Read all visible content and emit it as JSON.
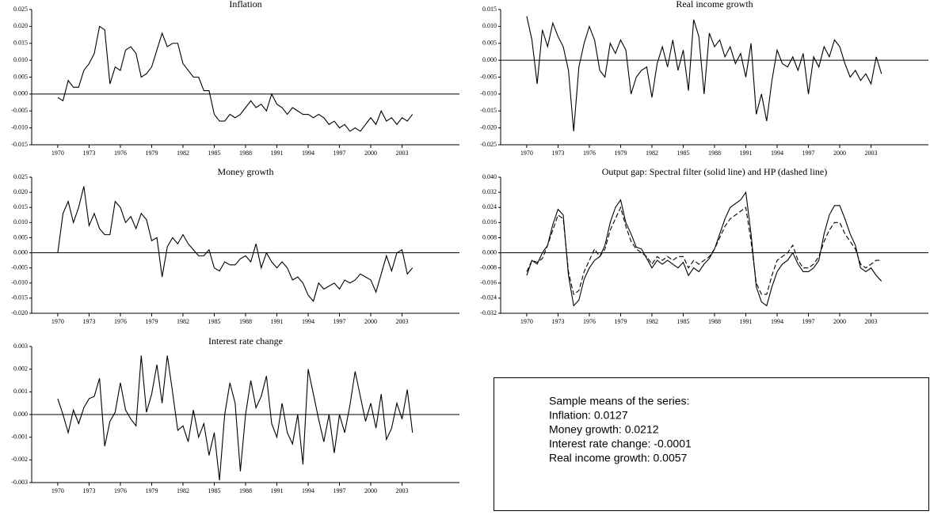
{
  "chart_data": [
    {
      "type": "line",
      "title": "Inflation",
      "x": [
        1970,
        1970.5,
        1971,
        1971.5,
        1972,
        1972.5,
        1973,
        1973.5,
        1974,
        1974.5,
        1975,
        1975.5,
        1976,
        1976.5,
        1977,
        1977.5,
        1978,
        1978.5,
        1979,
        1979.5,
        1980,
        1980.5,
        1981,
        1981.5,
        1982,
        1982.5,
        1983,
        1983.5,
        1984,
        1984.5,
        1985,
        1985.5,
        1986,
        1986.5,
        1987,
        1987.5,
        1988,
        1988.5,
        1989,
        1989.5,
        1990,
        1990.5,
        1991,
        1991.5,
        1992,
        1992.5,
        1993,
        1993.5,
        1994,
        1994.5,
        1995,
        1995.5,
        1996,
        1996.5,
        1997,
        1997.5,
        1998,
        1998.5,
        1999,
        1999.5,
        2000,
        2000.5,
        2001,
        2001.5,
        2002,
        2002.5,
        2003,
        2003.5,
        2004
      ],
      "series": [
        {
          "color": "#000000",
          "values": [
            -0.001,
            -0.002,
            0.004,
            0.002,
            0.002,
            0.007,
            0.009,
            0.012,
            0.02,
            0.019,
            0.003,
            0.008,
            0.007,
            0.013,
            0.014,
            0.012,
            0.005,
            0.006,
            0.008,
            0.013,
            0.018,
            0.014,
            0.015,
            0.015,
            0.009,
            0.007,
            0.005,
            0.005,
            0.001,
            0.001,
            -0.006,
            -0.008,
            -0.008,
            -0.006,
            -0.007,
            -0.006,
            -0.004,
            -0.002,
            -0.004,
            -0.003,
            -0.005,
            0.0,
            -0.003,
            -0.004,
            -0.006,
            -0.004,
            -0.005,
            -0.006,
            -0.006,
            -0.007,
            -0.006,
            -0.007,
            -0.009,
            -0.008,
            -0.01,
            -0.009,
            -0.011,
            -0.01,
            -0.011,
            -0.009,
            -0.007,
            -0.009,
            -0.005,
            -0.008,
            -0.007,
            -0.009,
            -0.007,
            -0.008,
            -0.006
          ]
        }
      ],
      "xlim": [
        1967.5,
        2008.5
      ],
      "xticks": [
        1970,
        1973,
        1976,
        1979,
        1982,
        1985,
        1988,
        1991,
        1994,
        1997,
        2000,
        2003
      ],
      "ylim": [
        -0.015,
        0.025
      ],
      "yticks": [
        -0.015,
        {
          "value": -0.01,
          "label": "-0.010"
        },
        -0.005,
        {
          "value": 0,
          "label": "0.000"
        },
        0.005,
        {
          "value": 0.01,
          "label": "0.010"
        },
        0.015,
        {
          "value": 0.02,
          "label": "0.020"
        },
        0.025
      ]
    },
    {
      "type": "line",
      "title": "Real income growth",
      "x": [
        1970,
        1970.5,
        1971,
        1971.5,
        1972,
        1972.5,
        1973,
        1973.5,
        1974,
        1974.5,
        1975,
        1975.5,
        1976,
        1976.5,
        1977,
        1977.5,
        1978,
        1978.5,
        1979,
        1979.5,
        1980,
        1980.5,
        1981,
        1981.5,
        1982,
        1982.5,
        1983,
        1983.5,
        1984,
        1984.5,
        1985,
        1985.5,
        1986,
        1986.5,
        1987,
        1987.5,
        1988,
        1988.5,
        1989,
        1989.5,
        1990,
        1990.5,
        1991,
        1991.5,
        1992,
        1992.5,
        1993,
        1993.5,
        1994,
        1994.5,
        1995,
        1995.5,
        1996,
        1996.5,
        1997,
        1997.5,
        1998,
        1998.5,
        1999,
        1999.5,
        2000,
        2000.5,
        2001,
        2001.5,
        2002,
        2002.5,
        2003,
        2003.5,
        2004
      ],
      "series": [
        {
          "color": "#000000",
          "values": [
            0.013,
            0.006,
            -0.007,
            0.009,
            0.004,
            0.011,
            0.007,
            0.004,
            -0.003,
            -0.021,
            -0.002,
            0.005,
            0.01,
            0.006,
            -0.003,
            -0.005,
            0.005,
            0.002,
            0.006,
            0.003,
            -0.01,
            -0.005,
            -0.003,
            -0.002,
            -0.011,
            -0.001,
            0.004,
            -0.002,
            0.006,
            -0.003,
            0.003,
            -0.009,
            0.012,
            0.007,
            -0.01,
            0.008,
            0.004,
            0.006,
            0.001,
            0.004,
            -0.001,
            0.002,
            -0.005,
            0.005,
            -0.016,
            -0.01,
            -0.018,
            -0.006,
            0.003,
            -0.001,
            -0.002,
            0.001,
            -0.003,
            0.002,
            -0.01,
            0.001,
            -0.002,
            0.004,
            0.001,
            0.006,
            0.004,
            -0.001,
            -0.005,
            -0.003,
            -0.006,
            -0.004,
            -0.007,
            0.001,
            -0.004
          ]
        }
      ],
      "xlim": [
        1967.5,
        2008.5
      ],
      "xticks": [
        1970,
        1973,
        1976,
        1979,
        1982,
        1985,
        1988,
        1991,
        1994,
        1997,
        2000,
        2003
      ],
      "ylim": [
        -0.025,
        0.015
      ],
      "yticks": [
        -0.025,
        {
          "value": -0.02,
          "label": "-0.020"
        },
        -0.015,
        {
          "value": -0.01,
          "label": "-0.010"
        },
        -0.005,
        {
          "value": 0,
          "label": "0.000"
        },
        0.005,
        {
          "value": 0.01,
          "label": "0.010"
        },
        0.015
      ]
    },
    {
      "type": "line",
      "title": "Money growth",
      "x": [
        1970,
        1970.5,
        1971,
        1971.5,
        1972,
        1972.5,
        1973,
        1973.5,
        1974,
        1974.5,
        1975,
        1975.5,
        1976,
        1976.5,
        1977,
        1977.5,
        1978,
        1978.5,
        1979,
        1979.5,
        1980,
        1980.5,
        1981,
        1981.5,
        1982,
        1982.5,
        1983,
        1983.5,
        1984,
        1984.5,
        1985,
        1985.5,
        1986,
        1986.5,
        1987,
        1987.5,
        1988,
        1988.5,
        1989,
        1989.5,
        1990,
        1990.5,
        1991,
        1991.5,
        1992,
        1992.5,
        1993,
        1993.5,
        1994,
        1994.5,
        1995,
        1995.5,
        1996,
        1996.5,
        1997,
        1997.5,
        1998,
        1998.5,
        1999,
        1999.5,
        2000,
        2000.5,
        2001,
        2001.5,
        2002,
        2002.5,
        2003,
        2003.5,
        2004
      ],
      "series": [
        {
          "color": "#000000",
          "values": [
            0.0,
            0.013,
            0.017,
            0.01,
            0.015,
            0.022,
            0.009,
            0.013,
            0.008,
            0.006,
            0.006,
            0.017,
            0.015,
            0.01,
            0.012,
            0.008,
            0.013,
            0.011,
            0.004,
            0.005,
            -0.008,
            0.002,
            0.005,
            0.003,
            0.006,
            0.003,
            0.001,
            -0.001,
            -0.001,
            0.001,
            -0.005,
            -0.006,
            -0.003,
            -0.004,
            -0.004,
            -0.002,
            -0.001,
            -0.003,
            0.003,
            -0.005,
            0.0,
            -0.003,
            -0.005,
            -0.003,
            -0.005,
            -0.009,
            -0.008,
            -0.01,
            -0.014,
            -0.016,
            -0.01,
            -0.012,
            -0.011,
            -0.01,
            -0.012,
            -0.009,
            -0.01,
            -0.009,
            -0.007,
            -0.008,
            -0.009,
            -0.013,
            -0.007,
            -0.001,
            -0.006,
            0.0,
            0.001,
            -0.007,
            -0.005
          ]
        }
      ],
      "xlim": [
        1967.5,
        2008.5
      ],
      "xticks": [
        1970,
        1973,
        1976,
        1979,
        1982,
        1985,
        1988,
        1991,
        1994,
        1997,
        2000,
        2003
      ],
      "ylim": [
        -0.02,
        0.025
      ],
      "yticks": [
        {
          "value": -0.02,
          "label": "-0.020"
        },
        -0.015,
        {
          "value": -0.01,
          "label": "-0.010"
        },
        -0.005,
        {
          "value": 0,
          "label": "0.000"
        },
        0.005,
        {
          "value": 0.01,
          "label": "0.010"
        },
        0.015,
        {
          "value": 0.02,
          "label": "0.020"
        },
        0.025
      ]
    },
    {
      "type": "line",
      "title": "Output gap: Spectral filter (solid line) and HP (dashed line)",
      "x": [
        1970,
        1970.5,
        1971,
        1971.5,
        1972,
        1972.5,
        1973,
        1973.5,
        1974,
        1974.5,
        1975,
        1975.5,
        1976,
        1976.5,
        1977,
        1977.5,
        1978,
        1978.5,
        1979,
        1979.5,
        1980,
        1980.5,
        1981,
        1981.5,
        1982,
        1982.5,
        1983,
        1983.5,
        1984,
        1984.5,
        1985,
        1985.5,
        1986,
        1986.5,
        1987,
        1987.5,
        1988,
        1988.5,
        1989,
        1989.5,
        1990,
        1990.5,
        1991,
        1991.5,
        1992,
        1992.5,
        1993,
        1993.5,
        1994,
        1994.5,
        1995,
        1995.5,
        1996,
        1996.5,
        1997,
        1997.5,
        1998,
        1998.5,
        1999,
        1999.5,
        2000,
        2000.5,
        2001,
        2001.5,
        2002,
        2002.5,
        2003,
        2003.5,
        2004
      ],
      "series": [
        {
          "color": "#000000",
          "dashed": false,
          "values": [
            -0.012,
            -0.004,
            -0.006,
            0.0,
            0.004,
            0.015,
            0.023,
            0.02,
            -0.012,
            -0.028,
            -0.025,
            -0.014,
            -0.008,
            -0.004,
            -0.002,
            0.004,
            0.016,
            0.024,
            0.028,
            0.016,
            0.01,
            0.003,
            0.002,
            -0.003,
            -0.008,
            -0.004,
            -0.006,
            -0.004,
            -0.006,
            -0.008,
            -0.005,
            -0.012,
            -0.008,
            -0.01,
            -0.006,
            -0.003,
            0.002,
            0.01,
            0.018,
            0.024,
            0.026,
            0.028,
            0.032,
            0.01,
            -0.018,
            -0.026,
            -0.028,
            -0.018,
            -0.01,
            -0.006,
            -0.004,
            0.0,
            -0.006,
            -0.01,
            -0.01,
            -0.008,
            -0.004,
            0.01,
            0.02,
            0.025,
            0.025,
            0.018,
            0.01,
            0.004,
            -0.008,
            -0.01,
            -0.008,
            -0.012,
            -0.015
          ]
        },
        {
          "color": "#000000",
          "dashed": true,
          "values": [
            -0.01,
            -0.004,
            -0.005,
            -0.003,
            0.004,
            0.012,
            0.02,
            0.018,
            -0.01,
            -0.022,
            -0.02,
            -0.01,
            -0.004,
            0.002,
            -0.002,
            0.002,
            0.012,
            0.018,
            0.024,
            0.014,
            0.006,
            0.002,
            0.0,
            -0.002,
            -0.006,
            -0.002,
            -0.004,
            -0.002,
            -0.004,
            -0.002,
            -0.002,
            -0.008,
            -0.004,
            -0.006,
            -0.004,
            -0.002,
            0.002,
            0.008,
            0.014,
            0.018,
            0.02,
            0.022,
            0.024,
            0.006,
            -0.016,
            -0.022,
            -0.022,
            -0.012,
            -0.004,
            -0.002,
            0.0,
            0.004,
            -0.004,
            -0.008,
            -0.008,
            -0.006,
            -0.002,
            0.006,
            0.012,
            0.016,
            0.016,
            0.01,
            0.006,
            0.002,
            -0.006,
            -0.008,
            -0.006,
            -0.004,
            -0.004
          ]
        }
      ],
      "xlim": [
        1967.5,
        2008.5
      ],
      "xticks": [
        1970,
        1973,
        1976,
        1979,
        1982,
        1985,
        1988,
        1991,
        1994,
        1997,
        2000,
        2003
      ],
      "ylim": [
        -0.032,
        0.04
      ],
      "yticks": [
        -0.032,
        -0.024,
        -0.016,
        -0.008,
        {
          "value": 0,
          "label": "0.000"
        },
        0.008,
        0.016,
        0.024,
        0.032,
        {
          "value": 0.04,
          "label": "0.040"
        }
      ]
    },
    {
      "type": "line",
      "title": "Interest rate change",
      "x": [
        1970,
        1970.5,
        1971,
        1971.5,
        1972,
        1972.5,
        1973,
        1973.5,
        1974,
        1974.5,
        1975,
        1975.5,
        1976,
        1976.5,
        1977,
        1977.5,
        1978,
        1978.5,
        1979,
        1979.5,
        1980,
        1980.5,
        1981,
        1981.5,
        1982,
        1982.5,
        1983,
        1983.5,
        1984,
        1984.5,
        1985,
        1985.5,
        1986,
        1986.5,
        1987,
        1987.5,
        1988,
        1988.5,
        1989,
        1989.5,
        1990,
        1990.5,
        1991,
        1991.5,
        1992,
        1992.5,
        1993,
        1993.5,
        1994,
        1994.5,
        1995,
        1995.5,
        1996,
        1996.5,
        1997,
        1997.5,
        1998,
        1998.5,
        1999,
        1999.5,
        2000,
        2000.5,
        2001,
        2001.5,
        2002,
        2002.5,
        2003,
        2003.5,
        2004
      ],
      "series": [
        {
          "color": "#000000",
          "values": [
            0.0007,
            0.0,
            -0.0008,
            0.0002,
            -0.0004,
            0.0003,
            0.0007,
            0.0008,
            0.0016,
            -0.0014,
            -0.0003,
            0.0001,
            0.0014,
            0.0002,
            -0.0002,
            -0.0005,
            0.0026,
            0.0001,
            0.0009,
            0.0022,
            0.0005,
            0.0026,
            0.001,
            -0.0007,
            -0.0005,
            -0.0012,
            0.0002,
            -0.001,
            -0.0004,
            -0.0018,
            -0.0008,
            -0.0029,
            0.0,
            0.0014,
            0.0005,
            -0.0025,
            0.0,
            0.0015,
            0.0003,
            0.0008,
            0.0017,
            -0.0004,
            -0.001,
            0.0005,
            -0.0008,
            -0.0013,
            0.0,
            -0.0022,
            0.002,
            0.0009,
            -0.0002,
            -0.0012,
            0.0,
            -0.0017,
            0.0,
            -0.0008,
            0.0004,
            0.0019,
            0.0008,
            -0.0003,
            0.0005,
            -0.0006,
            0.0009,
            -0.0011,
            -0.0006,
            0.0005,
            -0.0002,
            0.0011,
            -0.0008
          ]
        }
      ],
      "xlim": [
        1967.5,
        2008.5
      ],
      "xticks": [
        1970,
        1973,
        1976,
        1979,
        1982,
        1985,
        1988,
        1991,
        1994,
        1997,
        2000,
        2003
      ],
      "ylim": [
        -0.003,
        0.003
      ],
      "yticks": [
        -0.003,
        -0.002,
        -0.001,
        {
          "value": 0,
          "label": "0.000"
        },
        0.001,
        0.002,
        0.003
      ]
    }
  ],
  "text_box": {
    "lines": [
      "Sample means of the series:",
      "Inflation:  0.0127",
      "Money growth: 0.0212",
      "Interest rate change: -0.0001",
      "Real income growth: 0.0057"
    ]
  }
}
